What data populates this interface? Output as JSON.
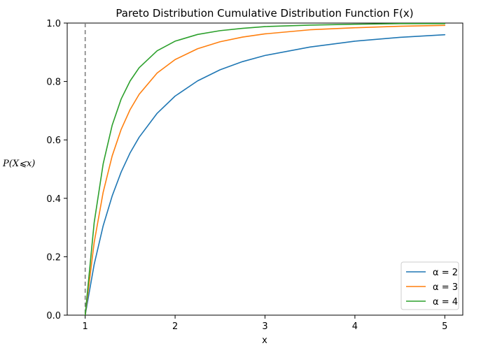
{
  "chart_data": {
    "type": "line",
    "title": "Pareto Distribution Cumulative Distribution Function F(x)",
    "xlabel": "x",
    "ylabel": "P(X⩽x)",
    "xlim": [
      0.8,
      5.2
    ],
    "ylim": [
      0.0,
      1.0
    ],
    "x_ticks": [
      1,
      2,
      3,
      4,
      5
    ],
    "y_ticks": [
      0.0,
      0.2,
      0.4,
      0.6,
      0.8,
      1.0
    ],
    "y_tick_labels": [
      "0.0",
      "0.2",
      "0.4",
      "0.6",
      "0.8",
      "1.0"
    ],
    "reference_line": {
      "x": 1,
      "style": "dashed",
      "color": "#7f7f7f"
    },
    "x": [
      1.0,
      1.1,
      1.2,
      1.3,
      1.4,
      1.5,
      1.6,
      1.8,
      2.0,
      2.25,
      2.5,
      2.75,
      3.0,
      3.5,
      4.0,
      4.5,
      5.0
    ],
    "series": [
      {
        "name": "α = 2",
        "alpha": "2",
        "color": "#1f77b4",
        "values": [
          0.0,
          0.174,
          0.306,
          0.408,
          0.49,
          0.556,
          0.609,
          0.691,
          0.75,
          0.802,
          0.84,
          0.868,
          0.889,
          0.918,
          0.938,
          0.951,
          0.96
        ]
      },
      {
        "name": "α = 3",
        "alpha": "3",
        "color": "#ff7f0e",
        "values": [
          0.0,
          0.249,
          0.421,
          0.545,
          0.636,
          0.704,
          0.756,
          0.829,
          0.875,
          0.912,
          0.936,
          0.952,
          0.963,
          0.977,
          0.984,
          0.989,
          0.992
        ]
      },
      {
        "name": "α = 4",
        "alpha": "4",
        "color": "#2ca02c",
        "values": [
          0.0,
          0.317,
          0.518,
          0.65,
          0.74,
          0.802,
          0.847,
          0.905,
          0.938,
          0.961,
          0.974,
          0.982,
          0.988,
          0.993,
          0.996,
          0.998,
          0.998
        ]
      }
    ],
    "legend": {
      "placement": "bottom-right"
    },
    "grid": false
  }
}
